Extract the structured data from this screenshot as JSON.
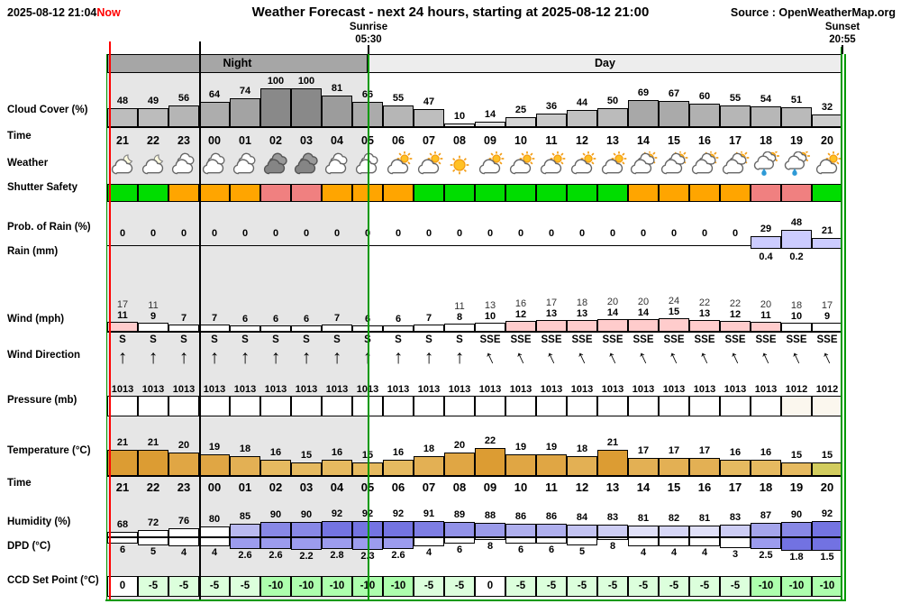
{
  "header": {
    "now_date": "2025-08-12 21:04",
    "now_label": "Now",
    "title": "Weather Forecast - next 24 hours, starting at 2025-08-12 21:00",
    "source": "Source : OpenWeatherMap.org"
  },
  "sun": {
    "sunrise_label": "Sunrise",
    "sunrise_time": "05:30",
    "sunset_label": "Sunset",
    "sunset_time": "20:55"
  },
  "bands": {
    "night": "Night",
    "day": "Day"
  },
  "row_labels": [
    "Cloud Cover (%)",
    "Time",
    "Weather",
    "Shutter Safety",
    "Prob. of Rain (%)",
    "Rain (mm)",
    "Wind (mph)",
    "Wind Direction",
    "Pressure (mb)",
    "Temperature (°C)",
    "Time",
    "Humidity (%)",
    "DPD (°C)",
    "CCD Set Point (°C)"
  ],
  "colors": {
    "now_line": "#ff0000",
    "sun_line": "#009900",
    "midnight_line": "#000000",
    "night_band": "#a6a6a6",
    "day_band": "#ededed",
    "night_bg": "#e6e6e6",
    "shutter_green": "#00dd00",
    "shutter_orange": "#ffa500",
    "shutter_red": "#f08080",
    "rain_bar": "#ccccff",
    "wind_pink": "#ffcccc",
    "ccd_0": "#ffffff",
    "ccd_m5": "#dcffdc",
    "ccd_m10": "#adffad"
  },
  "chart_data": {
    "type": "bar",
    "title": "Weather Forecast - next 24 hours, starting at 2025-08-12 21:00",
    "xlabel": "Time (hour)",
    "categories": [
      "21",
      "22",
      "23",
      "00",
      "01",
      "02",
      "03",
      "04",
      "05",
      "06",
      "07",
      "08",
      "09",
      "10",
      "11",
      "12",
      "13",
      "14",
      "15",
      "16",
      "17",
      "18",
      "19",
      "20"
    ],
    "series": [
      {
        "name": "Cloud Cover (%)",
        "values": [
          48,
          49,
          56,
          64,
          74,
          100,
          100,
          81,
          66,
          55,
          47,
          10,
          14,
          25,
          36,
          44,
          50,
          69,
          67,
          60,
          55,
          54,
          51,
          32
        ]
      },
      {
        "name": "Weather",
        "values": [
          "cloud-moon",
          "cloud-moon",
          "clouds",
          "clouds",
          "clouds",
          "dark-cloud",
          "dark-cloud",
          "clouds",
          "clouds",
          "cloud-sun",
          "cloud-sun",
          "sun",
          "cloud-sun",
          "cloud-sun",
          "cloud-sun",
          "cloud-sun",
          "cloud-sun",
          "clouds-sun",
          "clouds-sun",
          "clouds-sun",
          "clouds-sun",
          "rain-sun",
          "rain-sun",
          "cloud-sun"
        ]
      },
      {
        "name": "Shutter Safety",
        "values": [
          "green",
          "green",
          "orange",
          "orange",
          "orange",
          "red",
          "red",
          "orange",
          "orange",
          "orange",
          "green",
          "green",
          "green",
          "green",
          "green",
          "green",
          "green",
          "orange",
          "orange",
          "orange",
          "orange",
          "red",
          "red",
          "green"
        ]
      },
      {
        "name": "Prob. of Rain (%)",
        "values": [
          0,
          0,
          0,
          0,
          0,
          0,
          0,
          0,
          0,
          0,
          0,
          0,
          0,
          0,
          0,
          0,
          0,
          0,
          0,
          0,
          0,
          29,
          48,
          21
        ]
      },
      {
        "name": "Rain (mm)",
        "values": [
          null,
          null,
          null,
          null,
          null,
          null,
          null,
          null,
          null,
          null,
          null,
          null,
          null,
          null,
          null,
          null,
          null,
          null,
          null,
          null,
          null,
          0.4,
          0.2,
          null
        ]
      },
      {
        "name": "Wind Gust (mph)",
        "values": [
          17,
          11,
          null,
          null,
          null,
          null,
          null,
          null,
          null,
          null,
          null,
          11,
          13,
          16,
          17,
          18,
          20,
          20,
          24,
          22,
          22,
          20,
          18,
          17
        ]
      },
      {
        "name": "Wind (mph)",
        "values": [
          11,
          9,
          7,
          7,
          6,
          6,
          6,
          7,
          6,
          6,
          7,
          8,
          10,
          12,
          13,
          13,
          14,
          14,
          15,
          13,
          12,
          11,
          10,
          9
        ]
      },
      {
        "name": "Wind Direction",
        "values": [
          "S",
          "S",
          "S",
          "S",
          "S",
          "S",
          "S",
          "S",
          "S",
          "S",
          "S",
          "S",
          "SSE",
          "SSE",
          "SSE",
          "SSE",
          "SSE",
          "SSE",
          "SSE",
          "SSE",
          "SSE",
          "SSE",
          "SSE",
          "SSE"
        ]
      },
      {
        "name": "Pressure (mb)",
        "values": [
          1013,
          1013,
          1013,
          1013,
          1013,
          1013,
          1013,
          1013,
          1013,
          1013,
          1013,
          1013,
          1013,
          1013,
          1013,
          1013,
          1013,
          1013,
          1013,
          1013,
          1013,
          1013,
          1012,
          1012
        ]
      },
      {
        "name": "Temperature (°C)",
        "values": [
          21,
          21,
          20,
          19,
          18,
          16,
          15,
          16,
          15,
          16,
          18,
          20,
          22,
          19,
          19,
          18,
          21,
          17,
          17,
          17,
          16,
          16,
          15,
          15
        ]
      },
      {
        "name": "Humidity (%)",
        "values": [
          68,
          72,
          76,
          80,
          85,
          90,
          90,
          92,
          92,
          92,
          91,
          89,
          88,
          86,
          86,
          84,
          83,
          81,
          82,
          81,
          83,
          87,
          90,
          92
        ]
      },
      {
        "name": "DPD (°C)",
        "values": [
          6,
          5,
          4,
          4,
          2.6,
          2.6,
          2.2,
          2.8,
          2.3,
          2.6,
          4,
          6,
          8,
          6,
          6,
          5,
          8,
          4,
          4,
          4,
          3,
          2.5,
          1.8,
          1.5
        ]
      },
      {
        "name": "CCD Set Point (°C)",
        "values": [
          0,
          -5,
          -5,
          -5,
          -5,
          -10,
          -10,
          -10,
          -10,
          -10,
          -5,
          -5,
          0,
          -5,
          -5,
          -5,
          -5,
          -5,
          -5,
          -5,
          -5,
          -10,
          -10,
          -10
        ]
      }
    ]
  }
}
